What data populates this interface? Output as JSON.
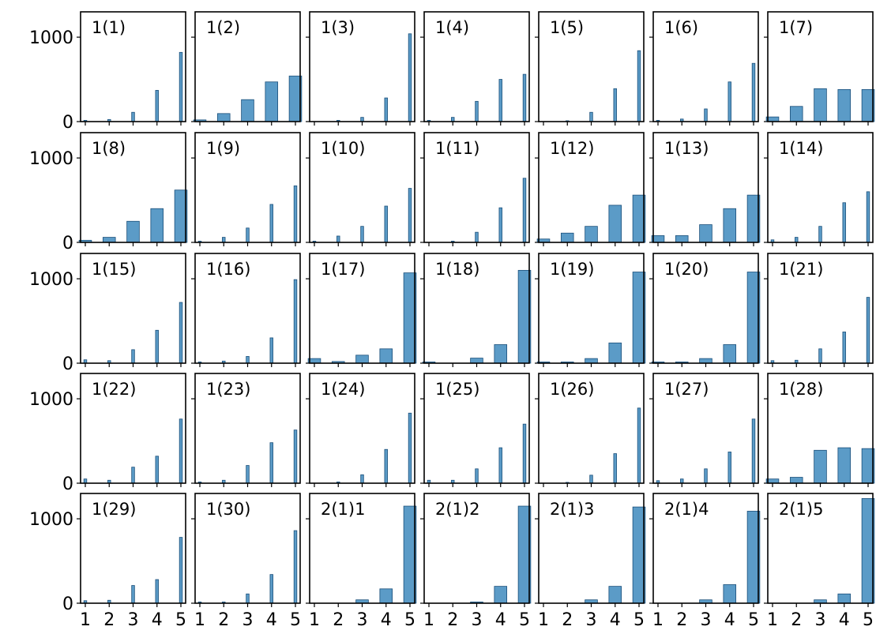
{
  "chart_data": {
    "type": "bar",
    "layout": "small-multiples grid, 5 rows x 7 columns, shared axes",
    "title": "",
    "xlabel": "",
    "ylabel": "",
    "categories": [
      "1",
      "2",
      "3",
      "4",
      "5"
    ],
    "ylim": [
      0,
      1300
    ],
    "yticks": [
      0,
      1000
    ],
    "grid": false,
    "legend": "none",
    "bar_color": "#5b9bc7",
    "bar_edge_color": "#1a4f7a",
    "panels": [
      {
        "label": "1(1)",
        "values": [
          15,
          25,
          110,
          370,
          820
        ],
        "width": "thin"
      },
      {
        "label": "1(2)",
        "values": [
          20,
          95,
          260,
          470,
          540
        ],
        "width": "wide"
      },
      {
        "label": "1(3)",
        "values": [
          0,
          15,
          50,
          280,
          1040
        ],
        "width": "thin"
      },
      {
        "label": "1(4)",
        "values": [
          15,
          50,
          240,
          500,
          560
        ],
        "width": "thin"
      },
      {
        "label": "1(5)",
        "values": [
          0,
          10,
          110,
          390,
          840
        ],
        "width": "thin"
      },
      {
        "label": "1(6)",
        "values": [
          15,
          30,
          150,
          470,
          690
        ],
        "width": "thin"
      },
      {
        "label": "1(7)",
        "values": [
          55,
          180,
          390,
          380,
          380
        ],
        "width": "wide"
      },
      {
        "label": "1(8)",
        "values": [
          25,
          60,
          250,
          400,
          620
        ],
        "width": "wide"
      },
      {
        "label": "1(9)",
        "values": [
          15,
          60,
          170,
          450,
          670
        ],
        "width": "thin"
      },
      {
        "label": "1(10)",
        "values": [
          15,
          75,
          190,
          430,
          640
        ],
        "width": "thin"
      },
      {
        "label": "1(11)",
        "values": [
          0,
          15,
          120,
          410,
          760
        ],
        "width": "thin"
      },
      {
        "label": "1(12)",
        "values": [
          40,
          110,
          190,
          440,
          560
        ],
        "width": "wide"
      },
      {
        "label": "1(13)",
        "values": [
          80,
          80,
          210,
          400,
          560
        ],
        "width": "wide"
      },
      {
        "label": "1(14)",
        "values": [
          30,
          60,
          190,
          470,
          600
        ],
        "width": "thin"
      },
      {
        "label": "1(15)",
        "values": [
          40,
          30,
          160,
          390,
          720
        ],
        "width": "thin"
      },
      {
        "label": "1(16)",
        "values": [
          15,
          25,
          80,
          300,
          990
        ],
        "width": "thin"
      },
      {
        "label": "1(17)",
        "values": [
          55,
          20,
          95,
          170,
          1070
        ],
        "width": "wide"
      },
      {
        "label": "1(18)",
        "values": [
          15,
          0,
          60,
          220,
          1100
        ],
        "width": "wide"
      },
      {
        "label": "1(19)",
        "values": [
          15,
          15,
          55,
          240,
          1080
        ],
        "width": "wide"
      },
      {
        "label": "1(20)",
        "values": [
          15,
          15,
          55,
          220,
          1080
        ],
        "width": "wide"
      },
      {
        "label": "1(21)",
        "values": [
          30,
          35,
          170,
          370,
          780
        ],
        "width": "thin"
      },
      {
        "label": "1(22)",
        "values": [
          50,
          35,
          190,
          320,
          760
        ],
        "width": "thin"
      },
      {
        "label": "1(23)",
        "values": [
          15,
          35,
          210,
          480,
          630
        ],
        "width": "thin"
      },
      {
        "label": "1(24)",
        "values": [
          0,
          15,
          100,
          400,
          830
        ],
        "width": "thin"
      },
      {
        "label": "1(25)",
        "values": [
          35,
          35,
          170,
          420,
          700
        ],
        "width": "thin"
      },
      {
        "label": "1(26)",
        "values": [
          0,
          10,
          95,
          350,
          890
        ],
        "width": "thin"
      },
      {
        "label": "1(27)",
        "values": [
          30,
          50,
          170,
          370,
          760
        ],
        "width": "thin"
      },
      {
        "label": "1(28)",
        "values": [
          50,
          70,
          390,
          420,
          410
        ],
        "width": "wide"
      },
      {
        "label": "1(29)",
        "values": [
          30,
          35,
          210,
          280,
          780
        ],
        "width": "thin"
      },
      {
        "label": "1(30)",
        "values": [
          15,
          15,
          110,
          340,
          860
        ],
        "width": "thin"
      },
      {
        "label": "2(1)1",
        "values": [
          0,
          0,
          40,
          170,
          1150
        ],
        "width": "wide"
      },
      {
        "label": "2(1)2",
        "values": [
          0,
          0,
          15,
          200,
          1150
        ],
        "width": "wide"
      },
      {
        "label": "2(1)3",
        "values": [
          0,
          0,
          40,
          200,
          1140
        ],
        "width": "wide"
      },
      {
        "label": "2(1)4",
        "values": [
          0,
          0,
          40,
          220,
          1090
        ],
        "width": "wide"
      },
      {
        "label": "2(1)5",
        "values": [
          0,
          0,
          40,
          110,
          1240
        ],
        "width": "wide"
      }
    ]
  }
}
